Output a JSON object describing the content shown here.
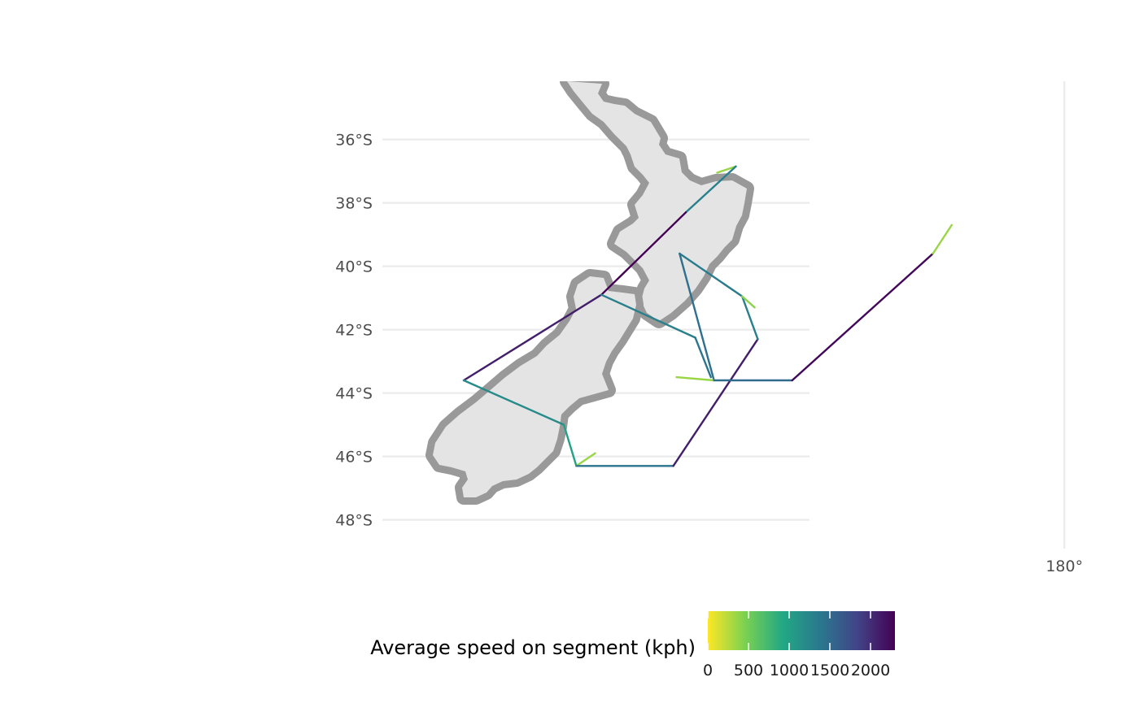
{
  "map": {
    "lat_ticks": [
      {
        "value": -36,
        "label": "36°S"
      },
      {
        "value": -38,
        "label": "38°S"
      },
      {
        "value": -40,
        "label": "40°S"
      },
      {
        "value": -42,
        "label": "42°S"
      },
      {
        "value": -44,
        "label": "44°S"
      },
      {
        "value": -46,
        "label": "46°S"
      },
      {
        "value": -48,
        "label": "48°S"
      }
    ],
    "lon_ticks": [
      {
        "value": 180,
        "label": "180°"
      }
    ],
    "land_color": "#e4e4e4",
    "outline_color": "#999999",
    "grid_color": "#ebebeb"
  },
  "legend": {
    "title": "Average speed on segment (kph)",
    "range": [
      0,
      2300
    ],
    "ticks": [
      {
        "value": 0,
        "label": "0"
      },
      {
        "value": 500,
        "label": "500"
      },
      {
        "value": 1000,
        "label": "1000"
      },
      {
        "value": 1500,
        "label": "1500"
      },
      {
        "value": 2000,
        "label": "2000"
      }
    ],
    "palette": [
      "#fde725",
      "#7ad151",
      "#22a884",
      "#2a788e",
      "#414487",
      "#440154"
    ]
  },
  "segments": [
    {
      "from": [
        174.75,
        -36.85
      ],
      "to": [
        174.45,
        -37.05
      ],
      "speed": 350
    },
    {
      "from": [
        174.75,
        -36.85
      ],
      "to": [
        173.95,
        -38.3
      ],
      "speed": 1300
    },
    {
      "from": [
        173.95,
        -38.3
      ],
      "to": [
        172.6,
        -40.9
      ],
      "speed": 2300
    },
    {
      "from": [
        172.6,
        -40.9
      ],
      "to": [
        170.4,
        -43.6
      ],
      "speed": 2100
    },
    {
      "from": [
        170.4,
        -43.6
      ],
      "to": [
        172.0,
        -45.0
      ],
      "speed": 1200
    },
    {
      "from": [
        172.0,
        -45.0
      ],
      "to": [
        172.2,
        -46.3
      ],
      "speed": 1000
    },
    {
      "from": [
        172.2,
        -46.3
      ],
      "to": [
        172.5,
        -45.9
      ],
      "speed": 350
    },
    {
      "from": [
        172.2,
        -46.3
      ],
      "to": [
        173.75,
        -46.3
      ],
      "speed": 1400
    },
    {
      "from": [
        173.75,
        -46.3
      ],
      "to": [
        175.1,
        -42.3
      ],
      "speed": 2100
    },
    {
      "from": [
        175.1,
        -42.3
      ],
      "to": [
        174.85,
        -40.95
      ],
      "speed": 1300
    },
    {
      "from": [
        174.85,
        -40.95
      ],
      "to": [
        173.85,
        -39.6
      ],
      "speed": 1350
    },
    {
      "from": [
        173.85,
        -39.6
      ],
      "to": [
        174.4,
        -43.6
      ],
      "speed": 1450
    },
    {
      "from": [
        174.4,
        -43.6
      ],
      "to": [
        173.8,
        -43.5
      ],
      "speed": 350
    },
    {
      "from": [
        174.4,
        -43.6
      ],
      "to": [
        175.65,
        -43.6
      ],
      "speed": 1500
    },
    {
      "from": [
        175.65,
        -43.6
      ],
      "to": [
        177.9,
        -39.6
      ],
      "speed": 2250
    },
    {
      "from": [
        177.9,
        -39.6
      ],
      "to": [
        178.2,
        -38.7
      ],
      "speed": 350
    },
    {
      "from": [
        172.6,
        -40.9
      ],
      "to": [
        174.1,
        -42.25
      ],
      "speed": 1300
    },
    {
      "from": [
        174.1,
        -42.25
      ],
      "to": [
        174.35,
        -43.5
      ],
      "speed": 1400
    },
    {
      "from": [
        174.85,
        -40.95
      ],
      "to": [
        175.05,
        -41.3
      ],
      "speed": 400
    }
  ]
}
